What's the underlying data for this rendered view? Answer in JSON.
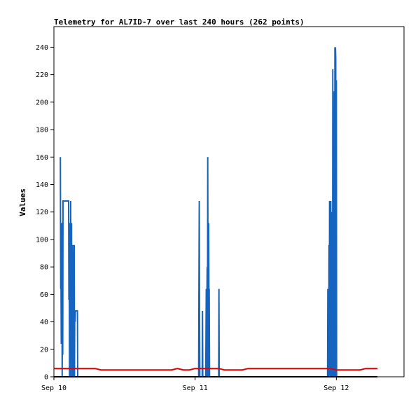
{
  "chart_data": {
    "type": "line",
    "title": "Telemetry for AL7ID-7 over last 240 hours (262 points)",
    "ylabel": "Values",
    "xlabel": "",
    "ylim": [
      0,
      255
    ],
    "xlim_hours": [
      0,
      59.5
    ],
    "yticks": [
      0,
      20,
      40,
      60,
      80,
      100,
      120,
      140,
      160,
      180,
      200,
      220,
      240
    ],
    "xticks": [
      {
        "label": "Sep 10",
        "hours": 0
      },
      {
        "label": "Sep 11",
        "hours": 24
      },
      {
        "label": "Sep 12",
        "hours": 48
      }
    ],
    "series": [
      {
        "color": "#1565c0",
        "x": [
          1.1,
          1.15,
          1.2,
          1.25,
          1.3,
          1.35,
          1.4,
          1.45,
          1.5,
          1.55,
          1.6,
          1.65,
          1.7,
          1.75,
          1.8,
          2.5,
          2.55,
          2.6,
          2.65,
          2.7,
          2.8,
          2.85,
          2.9,
          2.95,
          3.0,
          3.05,
          3.1,
          3.15,
          3.2,
          3.25,
          3.3,
          3.35,
          3.4,
          3.45,
          3.5,
          3.55,
          3.6,
          3.65,
          4.0,
          4.05,
          20.5,
          24.6,
          24.65,
          24.7,
          24.75,
          24.8,
          25.2,
          25.25,
          25.3,
          25.8,
          25.85,
          25.9,
          25.95,
          26.0,
          26.05,
          26.1,
          26.15,
          26.2,
          26.25,
          26.3,
          26.35,
          26.4,
          26.45,
          26.5,
          26.55,
          26.6,
          26.65,
          26.7,
          26.75,
          27.0,
          28.0,
          28.05,
          28.1,
          28.15,
          46.5,
          46.55,
          46.6,
          46.65,
          46.7,
          46.75,
          46.8,
          46.85,
          46.9,
          46.95,
          47.0,
          47.05,
          47.1,
          47.15,
          47.2,
          47.25,
          47.3,
          47.35,
          47.4,
          47.45,
          47.5,
          47.55,
          47.6,
          47.65,
          47.7,
          47.75,
          47.8,
          47.85,
          47.9,
          47.95,
          48.0,
          48.05,
          48.1,
          48.15,
          48.2,
          48.25,
          48.3,
          48.35,
          48.4,
          48.45,
          48.5,
          48.55,
          48.6,
          48.65,
          48.7
        ],
        "y": [
          160,
          64,
          72,
          24,
          72,
          112,
          0,
          40,
          16,
          128,
          128,
          128,
          128,
          128,
          128,
          128,
          56,
          112,
          0,
          56,
          0,
          128,
          56,
          32,
          112,
          0,
          64,
          0,
          96,
          48,
          0,
          72,
          40,
          96,
          0,
          48,
          40,
          48,
          48,
          0,
          0,
          0,
          64,
          128,
          40,
          0,
          0,
          48,
          0,
          0,
          32,
          64,
          0,
          56,
          80,
          0,
          160,
          48,
          0,
          112,
          56,
          64,
          0,
          0,
          0,
          0,
          0,
          0,
          0,
          0,
          0,
          64,
          0,
          0,
          0,
          64,
          0,
          32,
          0,
          96,
          0,
          128,
          0,
          64,
          0,
          128,
          64,
          0,
          120,
          0,
          64,
          0,
          224,
          32,
          0,
          192,
          54,
          208,
          0,
          240,
          0,
          240,
          232,
          0,
          216,
          0,
          0,
          0,
          0,
          0,
          0,
          0,
          0,
          0,
          0,
          0,
          0,
          0,
          0
        ],
        "name": ""
      },
      {
        "color": "#e00000",
        "x": [
          0,
          1,
          2,
          3,
          4,
          5,
          6,
          7,
          8,
          9,
          10,
          11,
          12,
          13,
          14,
          15,
          16,
          17,
          18,
          19,
          20,
          21,
          22,
          23,
          24,
          25,
          26,
          27,
          28,
          29,
          30,
          31,
          32,
          33,
          34,
          35,
          36,
          37,
          38,
          39,
          40,
          41,
          42,
          43,
          44,
          45,
          46,
          47,
          48,
          49,
          50,
          51,
          52,
          53,
          54,
          55
        ],
        "y": [
          6,
          6,
          6,
          6,
          6,
          6,
          6,
          6,
          5,
          5,
          5,
          5,
          5,
          5,
          5,
          5,
          5,
          5,
          5,
          5,
          5,
          6,
          5,
          5,
          6,
          6,
          6,
          6,
          6,
          5,
          5,
          5,
          5,
          6,
          6,
          6,
          6,
          6,
          6,
          6,
          6,
          6,
          6,
          6,
          6,
          6,
          6,
          6,
          5,
          5,
          5,
          5,
          5,
          6,
          6,
          6
        ],
        "name": ""
      },
      {
        "color": "#000000",
        "x": [
          0,
          55
        ],
        "y": [
          0,
          0
        ],
        "name": ""
      }
    ]
  }
}
